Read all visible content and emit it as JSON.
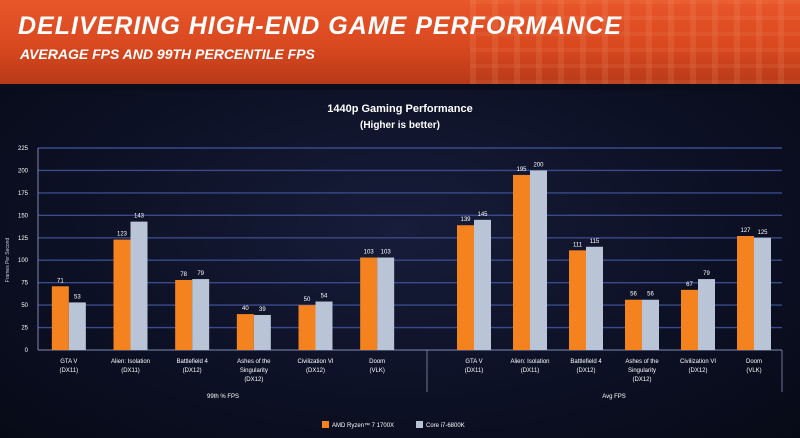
{
  "header": {
    "title": "DELIVERING HIGH-END GAME PERFORMANCE",
    "subtitle": "AVERAGE FPS AND 99TH PERCENTILE FPS"
  },
  "chart_data": {
    "type": "bar",
    "title": "1440p Gaming Performance",
    "subtitle": "(Higher is better)",
    "ylabel": "Frames Per Second",
    "ylim": [
      0,
      225
    ],
    "yticks": [
      0,
      25,
      50,
      75,
      100,
      125,
      150,
      175,
      200,
      225
    ],
    "grid": true,
    "legend_position": "bottom-right",
    "colors": {
      "amd": "#f4821f",
      "intel": "#b9c4d6",
      "background": "#0c1024",
      "grid": "#3a4a8a"
    },
    "series": [
      {
        "name": "AMD Ryzen™ 7 1700X",
        "color": "#f4821f"
      },
      {
        "name": "Core i7-6800K",
        "color": "#b9c4d6"
      }
    ],
    "groups": [
      {
        "label": "99th % FPS",
        "categories": [
          [
            "GTA V",
            "(DX11)"
          ],
          [
            "Alien: Isolation",
            "(DX11)"
          ],
          [
            "Battlefield 4",
            "(DX12)"
          ],
          [
            "Ashes of the",
            "Singularity",
            "(DX12)"
          ],
          [
            "Civilization VI",
            "(DX12)"
          ],
          [
            "Doom",
            "(VLK)"
          ]
        ],
        "values": [
          [
            71,
            53
          ],
          [
            123,
            143
          ],
          [
            78,
            79
          ],
          [
            40,
            39
          ],
          [
            50,
            54
          ],
          [
            103,
            103
          ]
        ]
      },
      {
        "label": "Avg FPS",
        "categories": [
          [
            "GTA V",
            "(DX11)"
          ],
          [
            "Alien: Isolation",
            "(DX11)"
          ],
          [
            "Battlefield 4",
            "(DX12)"
          ],
          [
            "Ashes of the",
            "Singularity",
            "(DX12)"
          ],
          [
            "Civilization VI",
            "(DX12)"
          ],
          [
            "Doom",
            "(VLK)"
          ]
        ],
        "values": [
          [
            139,
            145
          ],
          [
            195,
            200
          ],
          [
            111,
            115
          ],
          [
            56,
            56
          ],
          [
            67,
            79
          ],
          [
            127,
            125
          ]
        ]
      }
    ]
  }
}
